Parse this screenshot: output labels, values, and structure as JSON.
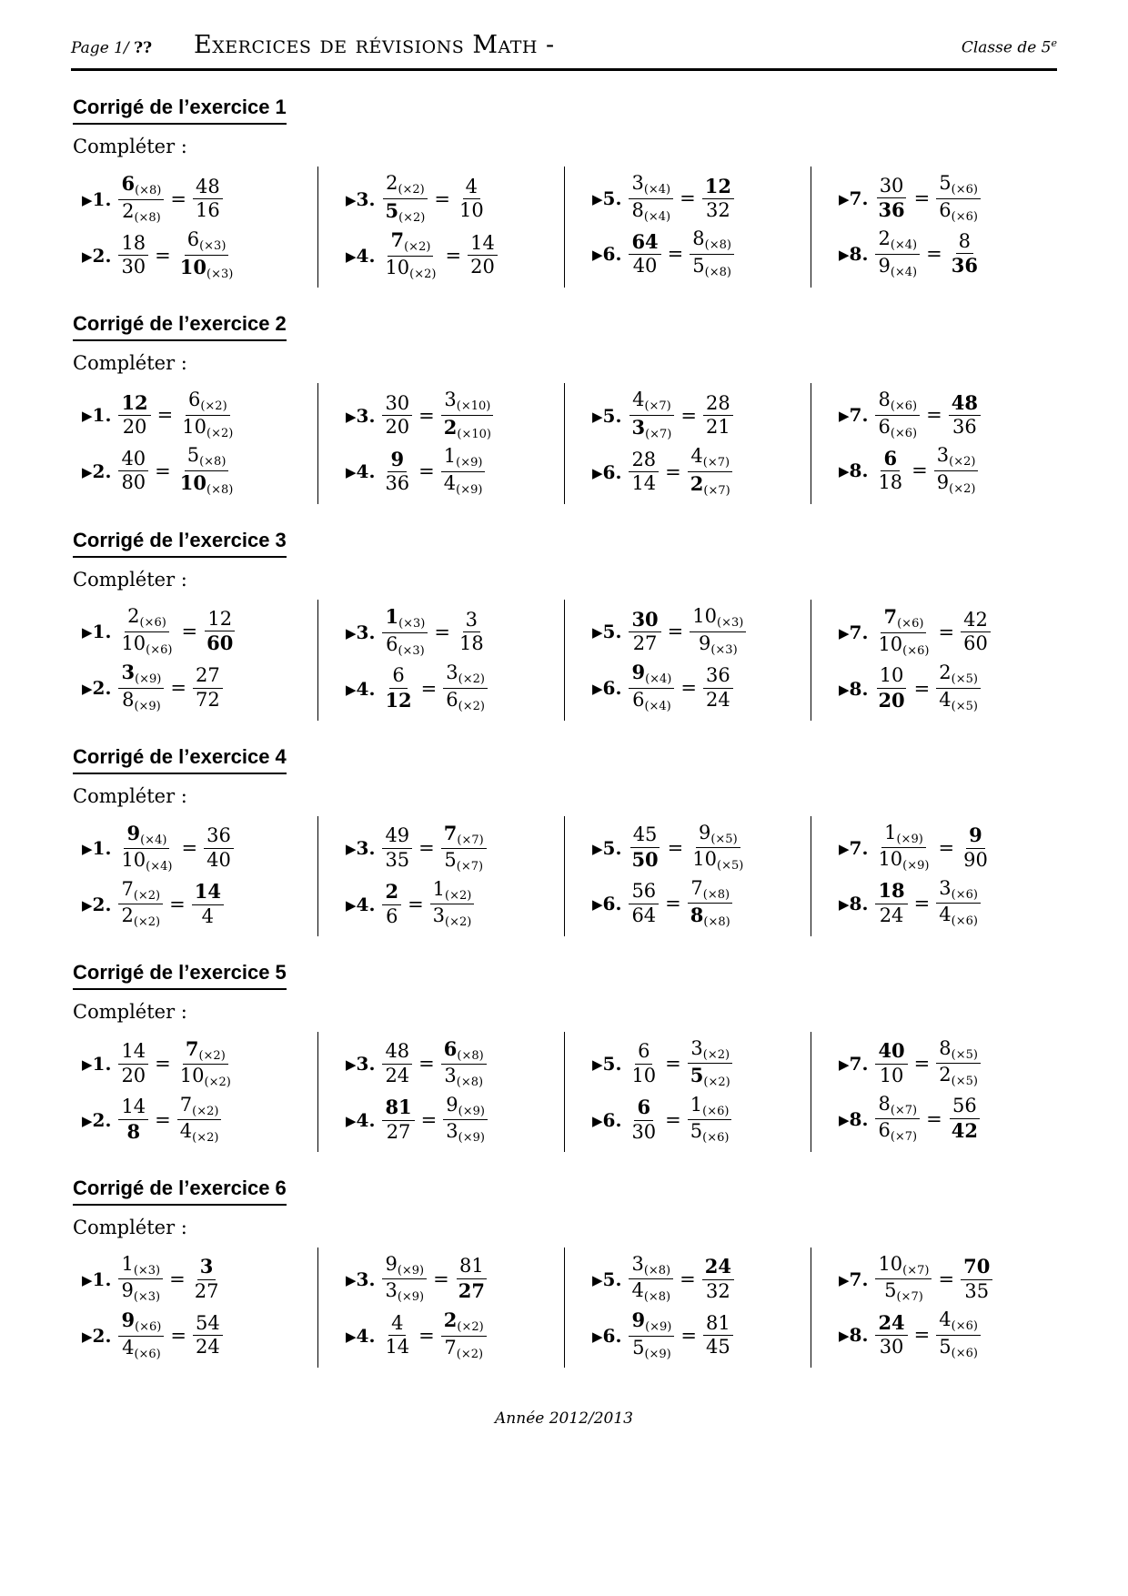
{
  "header": {
    "page_prefix": "Page 1/",
    "page_unknown": "??",
    "doc_title": "Exercices de révisions Math -",
    "class_label": "Classe de 5",
    "class_sup": "e"
  },
  "item_marker": "▶",
  "footer": {
    "text": "Année 2012/2013"
  },
  "sections": [
    {
      "title": "Corrigé de l’exercice 1",
      "prompt": "Compléter :",
      "items": [
        {
          "no": "1",
          "left": {
            "n": "6",
            "nb": true,
            "ns": "(×8)",
            "d": "2",
            "ds": "(×8)"
          },
          "right": {
            "n": "48",
            "d": "16"
          }
        },
        {
          "no": "2",
          "left": {
            "n": "18",
            "d": "30"
          },
          "right": {
            "n": "6",
            "ns": "(×3)",
            "d": "10",
            "db": true,
            "ds": "(×3)"
          }
        },
        {
          "no": "3",
          "left": {
            "n": "2",
            "ns": "(×2)",
            "d": "5",
            "db": true,
            "ds": "(×2)"
          },
          "right": {
            "n": "4",
            "d": "10"
          }
        },
        {
          "no": "4",
          "left": {
            "n": "7",
            "nb": true,
            "ns": "(×2)",
            "d": "10",
            "ds": "(×2)"
          },
          "right": {
            "n": "14",
            "d": "20"
          }
        },
        {
          "no": "5",
          "left": {
            "n": "3",
            "ns": "(×4)",
            "d": "8",
            "ds": "(×4)"
          },
          "right": {
            "n": "12",
            "nb": true,
            "d": "32"
          }
        },
        {
          "no": "6",
          "left": {
            "n": "64",
            "nb": true,
            "d": "40"
          },
          "right": {
            "n": "8",
            "ns": "(×8)",
            "d": "5",
            "ds": "(×8)"
          }
        },
        {
          "no": "7",
          "left": {
            "n": "30",
            "d": "36",
            "db": true
          },
          "right": {
            "n": "5",
            "ns": "(×6)",
            "d": "6",
            "ds": "(×6)"
          }
        },
        {
          "no": "8",
          "left": {
            "n": "2",
            "ns": "(×4)",
            "d": "9",
            "ds": "(×4)"
          },
          "right": {
            "n": "8",
            "d": "36",
            "db": true
          }
        }
      ]
    },
    {
      "title": "Corrigé de l’exercice 2",
      "prompt": "Compléter :",
      "items": [
        {
          "no": "1",
          "left": {
            "n": "12",
            "nb": true,
            "d": "20"
          },
          "right": {
            "n": "6",
            "ns": "(×2)",
            "d": "10",
            "ds": "(×2)"
          }
        },
        {
          "no": "2",
          "left": {
            "n": "40",
            "d": "80"
          },
          "right": {
            "n": "5",
            "ns": "(×8)",
            "d": "10",
            "db": true,
            "ds": "(×8)"
          }
        },
        {
          "no": "3",
          "left": {
            "n": "30",
            "d": "20"
          },
          "right": {
            "n": "3",
            "ns": "(×10)",
            "d": "2",
            "db": true,
            "ds": "(×10)"
          }
        },
        {
          "no": "4",
          "left": {
            "n": "9",
            "nb": true,
            "d": "36"
          },
          "right": {
            "n": "1",
            "ns": "(×9)",
            "d": "4",
            "ds": "(×9)"
          }
        },
        {
          "no": "5",
          "left": {
            "n": "4",
            "ns": "(×7)",
            "d": "3",
            "db": true,
            "ds": "(×7)"
          },
          "right": {
            "n": "28",
            "d": "21"
          }
        },
        {
          "no": "6",
          "left": {
            "n": "28",
            "d": "14"
          },
          "right": {
            "n": "4",
            "ns": "(×7)",
            "d": "2",
            "db": true,
            "ds": "(×7)"
          }
        },
        {
          "no": "7",
          "left": {
            "n": "8",
            "ns": "(×6)",
            "d": "6",
            "ds": "(×6)"
          },
          "right": {
            "n": "48",
            "nb": true,
            "d": "36"
          }
        },
        {
          "no": "8",
          "left": {
            "n": "6",
            "nb": true,
            "d": "18"
          },
          "right": {
            "n": "3",
            "ns": "(×2)",
            "d": "9",
            "ds": "(×2)"
          }
        }
      ]
    },
    {
      "title": "Corrigé de l’exercice 3",
      "prompt": "Compléter :",
      "items": [
        {
          "no": "1",
          "left": {
            "n": "2",
            "ns": "(×6)",
            "d": "10",
            "ds": "(×6)"
          },
          "right": {
            "n": "12",
            "d": "60",
            "db": true
          }
        },
        {
          "no": "2",
          "left": {
            "n": "3",
            "nb": true,
            "ns": "(×9)",
            "d": "8",
            "ds": "(×9)"
          },
          "right": {
            "n": "27",
            "d": "72"
          }
        },
        {
          "no": "3",
          "left": {
            "n": "1",
            "nb": true,
            "ns": "(×3)",
            "d": "6",
            "ds": "(×3)"
          },
          "right": {
            "n": "3",
            "d": "18"
          }
        },
        {
          "no": "4",
          "left": {
            "n": "6",
            "d": "12",
            "db": true
          },
          "right": {
            "n": "3",
            "ns": "(×2)",
            "d": "6",
            "ds": "(×2)"
          }
        },
        {
          "no": "5",
          "left": {
            "n": "30",
            "nb": true,
            "d": "27"
          },
          "right": {
            "n": "10",
            "ns": "(×3)",
            "d": "9",
            "ds": "(×3)"
          }
        },
        {
          "no": "6",
          "left": {
            "n": "9",
            "nb": true,
            "ns": "(×4)",
            "d": "6",
            "ds": "(×4)"
          },
          "right": {
            "n": "36",
            "d": "24"
          }
        },
        {
          "no": "7",
          "left": {
            "n": "7",
            "nb": true,
            "ns": "(×6)",
            "d": "10",
            "ds": "(×6)"
          },
          "right": {
            "n": "42",
            "d": "60"
          }
        },
        {
          "no": "8",
          "left": {
            "n": "10",
            "d": "20",
            "db": true
          },
          "right": {
            "n": "2",
            "ns": "(×5)",
            "d": "4",
            "ds": "(×5)"
          }
        }
      ]
    },
    {
      "title": "Corrigé de l’exercice 4",
      "prompt": "Compléter :",
      "items": [
        {
          "no": "1",
          "left": {
            "n": "9",
            "nb": true,
            "ns": "(×4)",
            "d": "10",
            "ds": "(×4)"
          },
          "right": {
            "n": "36",
            "d": "40"
          }
        },
        {
          "no": "2",
          "left": {
            "n": "7",
            "ns": "(×2)",
            "d": "2",
            "ds": "(×2)"
          },
          "right": {
            "n": "14",
            "nb": true,
            "d": "4"
          }
        },
        {
          "no": "3",
          "left": {
            "n": "49",
            "d": "35"
          },
          "right": {
            "n": "7",
            "nb": true,
            "ns": "(×7)",
            "d": "5",
            "ds": "(×7)"
          }
        },
        {
          "no": "4",
          "left": {
            "n": "2",
            "nb": true,
            "d": "6"
          },
          "right": {
            "n": "1",
            "ns": "(×2)",
            "d": "3",
            "ds": "(×2)"
          }
        },
        {
          "no": "5",
          "left": {
            "n": "45",
            "d": "50",
            "db": true
          },
          "right": {
            "n": "9",
            "ns": "(×5)",
            "d": "10",
            "ds": "(×5)"
          }
        },
        {
          "no": "6",
          "left": {
            "n": "56",
            "d": "64"
          },
          "right": {
            "n": "7",
            "ns": "(×8)",
            "d": "8",
            "db": true,
            "ds": "(×8)"
          }
        },
        {
          "no": "7",
          "left": {
            "n": "1",
            "ns": "(×9)",
            "d": "10",
            "ds": "(×9)"
          },
          "right": {
            "n": "9",
            "nb": true,
            "d": "90"
          }
        },
        {
          "no": "8",
          "left": {
            "n": "18",
            "nb": true,
            "d": "24"
          },
          "right": {
            "n": "3",
            "ns": "(×6)",
            "d": "4",
            "ds": "(×6)"
          }
        }
      ]
    },
    {
      "title": "Corrigé de l’exercice 5",
      "prompt": "Compléter :",
      "items": [
        {
          "no": "1",
          "left": {
            "n": "14",
            "d": "20"
          },
          "right": {
            "n": "7",
            "nb": true,
            "ns": "(×2)",
            "d": "10",
            "ds": "(×2)"
          }
        },
        {
          "no": "2",
          "left": {
            "n": "14",
            "d": "8",
            "db": true
          },
          "right": {
            "n": "7",
            "ns": "(×2)",
            "d": "4",
            "ds": "(×2)"
          }
        },
        {
          "no": "3",
          "left": {
            "n": "48",
            "d": "24"
          },
          "right": {
            "n": "6",
            "nb": true,
            "ns": "(×8)",
            "d": "3",
            "ds": "(×8)"
          }
        },
        {
          "no": "4",
          "left": {
            "n": "81",
            "nb": true,
            "d": "27"
          },
          "right": {
            "n": "9",
            "ns": "(×9)",
            "d": "3",
            "ds": "(×9)"
          }
        },
        {
          "no": "5",
          "left": {
            "n": "6",
            "d": "10"
          },
          "right": {
            "n": "3",
            "ns": "(×2)",
            "d": "5",
            "db": true,
            "ds": "(×2)"
          }
        },
        {
          "no": "6",
          "left": {
            "n": "6",
            "nb": true,
            "d": "30"
          },
          "right": {
            "n": "1",
            "ns": "(×6)",
            "d": "5",
            "ds": "(×6)"
          }
        },
        {
          "no": "7",
          "left": {
            "n": "40",
            "nb": true,
            "d": "10"
          },
          "right": {
            "n": "8",
            "ns": "(×5)",
            "d": "2",
            "ds": "(×5)"
          }
        },
        {
          "no": "8",
          "left": {
            "n": "8",
            "ns": "(×7)",
            "d": "6",
            "ds": "(×7)"
          },
          "right": {
            "n": "56",
            "d": "42",
            "db": true
          }
        }
      ]
    },
    {
      "title": "Corrigé de l’exercice 6",
      "prompt": "Compléter :",
      "items": [
        {
          "no": "1",
          "left": {
            "n": "1",
            "ns": "(×3)",
            "d": "9",
            "ds": "(×3)"
          },
          "right": {
            "n": "3",
            "nb": true,
            "d": "27"
          }
        },
        {
          "no": "2",
          "left": {
            "n": "9",
            "nb": true,
            "ns": "(×6)",
            "d": "4",
            "ds": "(×6)"
          },
          "right": {
            "n": "54",
            "d": "24"
          }
        },
        {
          "no": "3",
          "left": {
            "n": "9",
            "ns": "(×9)",
            "d": "3",
            "ds": "(×9)"
          },
          "right": {
            "n": "81",
            "d": "27",
            "db": true
          }
        },
        {
          "no": "4",
          "left": {
            "n": "4",
            "d": "14"
          },
          "right": {
            "n": "2",
            "nb": true,
            "ns": "(×2)",
            "d": "7",
            "ds": "(×2)"
          }
        },
        {
          "no": "5",
          "left": {
            "n": "3",
            "ns": "(×8)",
            "d": "4",
            "ds": "(×8)"
          },
          "right": {
            "n": "24",
            "nb": true,
            "d": "32"
          }
        },
        {
          "no": "6",
          "left": {
            "n": "9",
            "nb": true,
            "ns": "(×9)",
            "d": "5",
            "ds": "(×9)"
          },
          "right": {
            "n": "81",
            "d": "45"
          }
        },
        {
          "no": "7",
          "left": {
            "n": "10",
            "ns": "(×7)",
            "d": "5",
            "ds": "(×7)"
          },
          "right": {
            "n": "70",
            "nb": true,
            "d": "35"
          }
        },
        {
          "no": "8",
          "left": {
            "n": "24",
            "nb": true,
            "d": "30"
          },
          "right": {
            "n": "4",
            "ns": "(×6)",
            "d": "5",
            "ds": "(×6)"
          }
        }
      ]
    }
  ]
}
